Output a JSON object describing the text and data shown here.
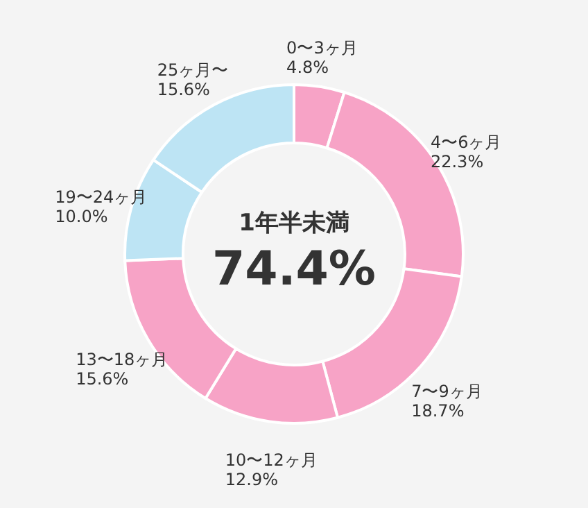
{
  "chart_data": {
    "type": "donut",
    "categories": [
      "0〜3ヶ月",
      "4〜6ヶ月",
      "7〜9ヶ月",
      "10〜12ヶ月",
      "13〜18ヶ月",
      "19〜24ヶ月",
      "25ヶ月〜"
    ],
    "values": [
      4.8,
      22.3,
      18.7,
      12.9,
      15.6,
      10.0,
      15.6
    ],
    "colors": [
      "#f7a3c6",
      "#f7a3c6",
      "#f7a3c6",
      "#f7a3c6",
      "#f7a3c6",
      "#bde4f4",
      "#bde4f4"
    ],
    "value_labels": [
      "4.8%",
      "22.3%",
      "18.7%",
      "12.9%",
      "15.6%",
      "10.0%",
      "15.6%"
    ],
    "annotations": [
      "1年半未満",
      "74.4%"
    ],
    "legend": false
  }
}
